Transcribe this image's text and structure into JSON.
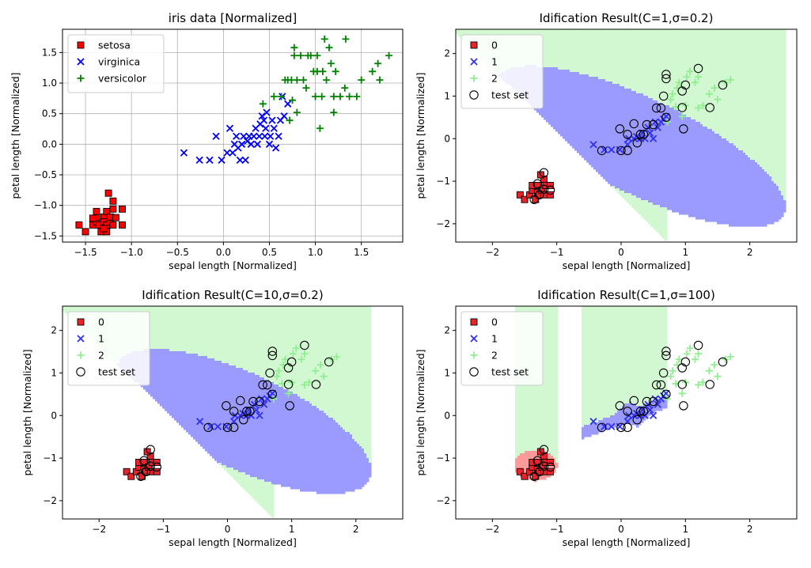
{
  "colors": {
    "setosa": "#ff0000",
    "virginica": "#0000ff",
    "versicolor": "#008000",
    "region0": "#ff9a9a",
    "region1": "#9a9aff",
    "region2": "#d2f8d2",
    "class0_marker": "#e8232a",
    "class1_marker": "#3030f0",
    "class2_marker": "#90ee90"
  },
  "chart_data": [
    {
      "type": "scatter",
      "title": "iris data [Normalized]",
      "xlabel": "sepal length [Normalized]",
      "ylabel": "petal length [Normalized]",
      "xlim": [
        -1.75,
        1.95
      ],
      "ylim": [
        -1.6,
        1.88
      ],
      "xticks": [
        "−1.5",
        "−1.0",
        "−0.5",
        "0.0",
        "0.5",
        "1.0",
        "1.5"
      ],
      "xtick_values": [
        -1.5,
        -1.0,
        -0.5,
        0.0,
        0.5,
        1.0,
        1.5
      ],
      "yticks": [
        "−1.5",
        "−1.0",
        "−0.5",
        "0.0",
        "0.5",
        "1.0",
        "1.5"
      ],
      "ytick_values": [
        -1.5,
        -1.0,
        -0.5,
        0.0,
        0.5,
        1.0,
        1.5
      ],
      "grid": true,
      "legend_position": "top-left",
      "series": [
        {
          "name": "setosa",
          "marker": "square",
          "color_key": "setosa",
          "points": [
            [
              -1.57,
              -1.32
            ],
            [
              -1.5,
              -1.43
            ],
            [
              -1.42,
              -1.32
            ],
            [
              -1.38,
              -1.27
            ],
            [
              -1.38,
              -1.19
            ],
            [
              -1.35,
              -1.32
            ],
            [
              -1.33,
              -1.43
            ],
            [
              -1.3,
              -1.19
            ],
            [
              -1.3,
              -1.27
            ],
            [
              -1.27,
              -1.32
            ],
            [
              -1.27,
              -1.1
            ],
            [
              -1.27,
              -1.43
            ],
            [
              -1.23,
              -1.27
            ],
            [
              -1.23,
              -1.19
            ],
            [
              -1.2,
              -1.32
            ],
            [
              -1.2,
              -1.06
            ],
            [
              -1.17,
              -1.2
            ],
            [
              -1.25,
              -0.8
            ],
            [
              -1.2,
              -0.93
            ],
            [
              -1.1,
              -1.06
            ],
            [
              -1.1,
              -1.32
            ],
            [
              -1.38,
              -1.1
            ],
            [
              -1.42,
              -1.21
            ],
            [
              -1.3,
              -1.38
            ]
          ]
        },
        {
          "name": "virginica",
          "marker": "x",
          "color_key": "virginica",
          "points": [
            [
              -0.43,
              -0.14
            ],
            [
              -0.26,
              -0.26
            ],
            [
              -0.15,
              -0.26
            ],
            [
              -0.08,
              0.13
            ],
            [
              -0.02,
              -0.26
            ],
            [
              0.04,
              -0.14
            ],
            [
              0.07,
              0.26
            ],
            [
              0.1,
              -0.14
            ],
            [
              0.12,
              0.0
            ],
            [
              0.14,
              0.13
            ],
            [
              0.16,
              -0.06
            ],
            [
              0.18,
              -0.26
            ],
            [
              0.2,
              0.0
            ],
            [
              0.22,
              0.13
            ],
            [
              0.24,
              -0.26
            ],
            [
              0.26,
              0.05
            ],
            [
              0.28,
              0.13
            ],
            [
              0.3,
              0.0
            ],
            [
              0.33,
              0.13
            ],
            [
              0.35,
              0.26
            ],
            [
              0.37,
              0.0
            ],
            [
              0.39,
              0.13
            ],
            [
              0.4,
              0.33
            ],
            [
              0.42,
              0.46
            ],
            [
              0.44,
              0.39
            ],
            [
              0.45,
              0.13
            ],
            [
              0.46,
              0.26
            ],
            [
              0.47,
              0.52
            ],
            [
              0.5,
              0.0
            ],
            [
              0.51,
              0.13
            ],
            [
              0.53,
              0.39
            ],
            [
              0.55,
              0.26
            ],
            [
              0.57,
              -0.06
            ],
            [
              0.6,
              0.13
            ],
            [
              0.62,
              0.39
            ],
            [
              0.64,
              0.78
            ],
            [
              0.66,
              0.46
            ],
            [
              0.7,
              0.66
            ]
          ]
        },
        {
          "name": "versicolor",
          "marker": "plus",
          "color_key": "versicolor",
          "points": [
            [
              0.43,
              0.66
            ],
            [
              0.55,
              0.78
            ],
            [
              0.63,
              0.78
            ],
            [
              0.67,
              1.05
            ],
            [
              0.7,
              1.05
            ],
            [
              0.72,
              0.39
            ],
            [
              0.74,
              1.05
            ],
            [
              0.75,
              0.72
            ],
            [
              0.77,
              1.58
            ],
            [
              0.77,
              1.45
            ],
            [
              0.8,
              0.52
            ],
            [
              0.8,
              1.05
            ],
            [
              0.84,
              1.45
            ],
            [
              0.87,
              1.05
            ],
            [
              0.9,
              0.92
            ],
            [
              0.92,
              1.45
            ],
            [
              0.95,
              1.45
            ],
            [
              0.98,
              1.19
            ],
            [
              1.0,
              0.78
            ],
            [
              1.02,
              1.19
            ],
            [
              1.02,
              1.45
            ],
            [
              1.05,
              0.26
            ],
            [
              1.07,
              0.78
            ],
            [
              1.08,
              1.19
            ],
            [
              1.1,
              1.72
            ],
            [
              1.12,
              1.05
            ],
            [
              1.15,
              1.58
            ],
            [
              1.17,
              1.32
            ],
            [
              1.2,
              0.78
            ],
            [
              1.2,
              0.52
            ],
            [
              1.22,
              1.19
            ],
            [
              1.27,
              0.78
            ],
            [
              1.32,
              0.92
            ],
            [
              1.33,
              1.72
            ],
            [
              1.37,
              0.78
            ],
            [
              1.45,
              0.78
            ],
            [
              1.5,
              1.05
            ],
            [
              1.62,
              1.19
            ],
            [
              1.68,
              1.32
            ],
            [
              1.7,
              1.05
            ],
            [
              1.8,
              1.45
            ]
          ]
        }
      ]
    },
    {
      "type": "scatter",
      "title": "Idification Result(C=1,σ=0.2)",
      "xlabel": "sepal length [Normalized]",
      "ylabel": "petal length [Normalized]",
      "xlim": [
        -2.57,
        2.73
      ],
      "ylim": [
        -2.43,
        2.57
      ],
      "xticks": [
        "−2",
        "−1",
        "0",
        "1",
        "2"
      ],
      "xtick_values": [
        -2,
        -1,
        0,
        1,
        2
      ],
      "yticks": [
        "−2",
        "−1",
        "0",
        "1",
        "2"
      ],
      "ytick_values": [
        -2,
        -1,
        0,
        1,
        2
      ],
      "grid": false,
      "legend_position": "top-left",
      "decision_regions": {
        "model": "C=1,σ=0.2"
      },
      "legend": [
        "0",
        "1",
        "2",
        "test set"
      ]
    },
    {
      "type": "scatter",
      "title": "Idification Result(C=10,σ=0.2)",
      "xlabel": "sepal length [Normalized]",
      "ylabel": "petal length [Normalized]",
      "xlim": [
        -2.57,
        2.73
      ],
      "ylim": [
        -2.43,
        2.57
      ],
      "xticks": [
        "−2",
        "−1",
        "0",
        "1",
        "2"
      ],
      "xtick_values": [
        -2,
        -1,
        0,
        1,
        2
      ],
      "yticks": [
        "−2",
        "−1",
        "0",
        "1",
        "2"
      ],
      "ytick_values": [
        -2,
        -1,
        0,
        1,
        2
      ],
      "grid": false,
      "legend_position": "top-left",
      "decision_regions": {
        "model": "C=10,σ=0.2"
      },
      "legend": [
        "0",
        "1",
        "2",
        "test set"
      ]
    },
    {
      "type": "scatter",
      "title": "Idification Result(C=1,σ=100)",
      "xlabel": "sepal length [Normalized]",
      "ylabel": "petal length [Normalized]",
      "xlim": [
        -2.57,
        2.73
      ],
      "ylim": [
        -2.43,
        2.57
      ],
      "xticks": [
        "−2",
        "−1",
        "0",
        "1",
        "2"
      ],
      "xtick_values": [
        -2,
        -1,
        0,
        1,
        2
      ],
      "yticks": [
        "−2",
        "−1",
        "0",
        "1",
        "2"
      ],
      "ytick_values": [
        -2,
        -1,
        0,
        1,
        2
      ],
      "grid": false,
      "legend_position": "top-left",
      "decision_regions": {
        "model": "C=1,σ=100"
      },
      "legend": [
        "0",
        "1",
        "2",
        "test set"
      ]
    }
  ],
  "result_points": {
    "class0": [
      [
        -1.57,
        -1.32
      ],
      [
        -1.5,
        -1.43
      ],
      [
        -1.42,
        -1.32
      ],
      [
        -1.38,
        -1.21
      ],
      [
        -1.38,
        -1.1
      ],
      [
        -1.33,
        -1.43
      ],
      [
        -1.3,
        -1.27
      ],
      [
        -1.3,
        -1.1
      ],
      [
        -1.27,
        -1.32
      ],
      [
        -1.23,
        -1.21
      ],
      [
        -1.2,
        -0.95
      ],
      [
        -1.2,
        -1.32
      ],
      [
        -1.17,
        -1.1
      ],
      [
        -1.1,
        -1.1
      ],
      [
        -1.1,
        -1.32
      ],
      [
        -1.25,
        -0.85
      ]
    ],
    "class1": [
      [
        -0.43,
        -0.14
      ],
      [
        -0.26,
        -0.26
      ],
      [
        -0.15,
        -0.26
      ],
      [
        -0.02,
        -0.26
      ],
      [
        0.1,
        -0.14
      ],
      [
        0.12,
        0.0
      ],
      [
        0.2,
        0.0
      ],
      [
        0.24,
        0.05
      ],
      [
        0.3,
        0.0
      ],
      [
        0.33,
        0.13
      ],
      [
        0.37,
        0.0
      ],
      [
        0.42,
        0.26
      ],
      [
        0.45,
        0.13
      ],
      [
        0.5,
        0.0
      ],
      [
        0.53,
        0.39
      ],
      [
        0.57,
        0.26
      ],
      [
        0.62,
        0.39
      ],
      [
        0.66,
        0.46
      ],
      [
        0.7,
        0.52
      ]
    ],
    "class2": [
      [
        0.72,
        0.39
      ],
      [
        0.77,
        0.92
      ],
      [
        0.8,
        1.05
      ],
      [
        0.87,
        1.19
      ],
      [
        0.9,
        1.32
      ],
      [
        0.95,
        0.52
      ],
      [
        1.0,
        0.78
      ],
      [
        1.02,
        1.45
      ],
      [
        1.07,
        1.58
      ],
      [
        1.15,
        1.32
      ],
      [
        1.2,
        1.45
      ],
      [
        1.27,
        0.78
      ],
      [
        1.37,
        1.05
      ],
      [
        1.45,
        1.19
      ],
      [
        1.5,
        0.92
      ],
      [
        1.62,
        1.32
      ],
      [
        1.7,
        1.38
      ],
      [
        1.2,
        0.72
      ],
      [
        0.85,
        0.75
      ]
    ],
    "test_set": [
      [
        -1.2,
        -0.8
      ],
      [
        -1.27,
        -1.32
      ],
      [
        -1.35,
        -1.43
      ],
      [
        -1.2,
        -1.19
      ],
      [
        -1.3,
        -1.06
      ],
      [
        -1.1,
        -1.21
      ],
      [
        -0.02,
        0.23
      ],
      [
        0.1,
        0.1
      ],
      [
        0.2,
        0.35
      ],
      [
        0.4,
        0.33
      ],
      [
        0.5,
        0.33
      ],
      [
        0.55,
        0.72
      ],
      [
        0.62,
        0.72
      ],
      [
        0.66,
        1.0
      ],
      [
        0.7,
        1.51
      ],
      [
        0.7,
        1.41
      ],
      [
        0.7,
        0.5
      ],
      [
        0.95,
        1.12
      ],
      [
        0.97,
        0.23
      ],
      [
        1.0,
        1.26
      ],
      [
        1.2,
        1.65
      ],
      [
        1.38,
        0.73
      ],
      [
        1.58,
        1.26
      ],
      [
        0.95,
        0.73
      ],
      [
        0.3,
        0.1
      ],
      [
        0.1,
        -0.28
      ],
      [
        -0.3,
        -0.28
      ],
      [
        0.35,
        0.1
      ],
      [
        0.25,
        -0.1
      ],
      [
        0.0,
        -0.28
      ]
    ]
  }
}
